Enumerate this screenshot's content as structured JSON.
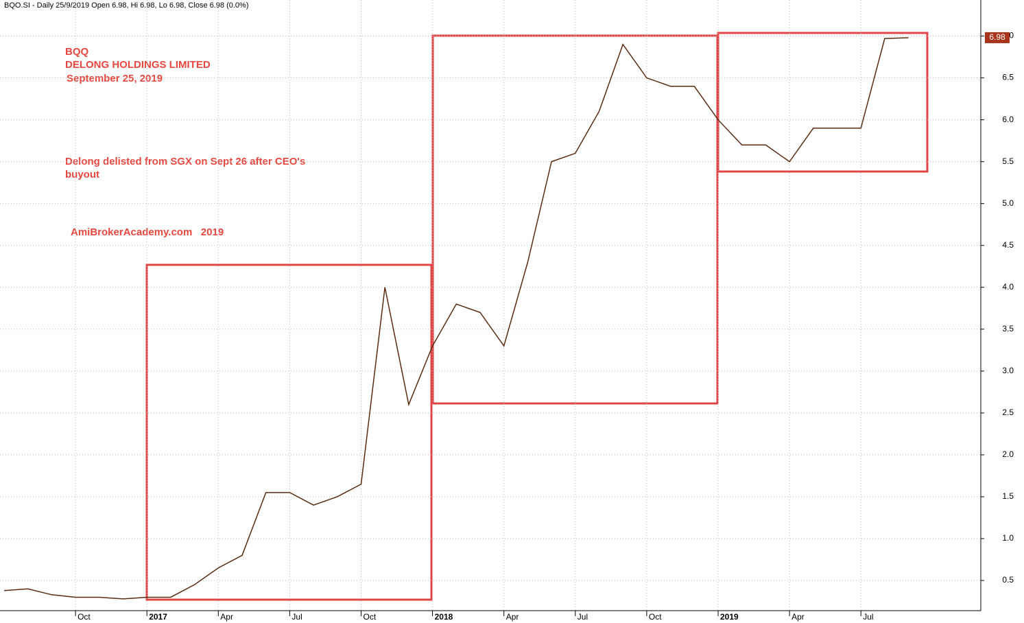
{
  "chart_data": {
    "type": "line",
    "title": "BQO.SI - Daily 25/9/2019 Open 6.98, Hi 6.98, Lo 6.98, Close 6.98 (0.0%)",
    "annotations": [
      "BQQ",
      "DELONG HOLDINGS LIMITED",
      "September 25, 2019",
      "Delong delisted from SGX on Sept 26 after CEO's",
      "buyout",
      "AmiBrokerAcademy.com   2019"
    ],
    "categories": [
      null,
      null,
      null,
      "Oct",
      null,
      null,
      "2017",
      null,
      null,
      "Apr",
      null,
      null,
      "Jul",
      null,
      null,
      "Oct",
      null,
      null,
      "2018",
      null,
      null,
      "Apr",
      null,
      null,
      "Jul",
      null,
      null,
      "Oct",
      null,
      null,
      "2019",
      null,
      null,
      "Apr",
      null,
      null,
      "Jul",
      null,
      null
    ],
    "series": [
      {
        "name": "BQO.SI",
        "color": "#5a2a10",
        "values": [
          0.38,
          0.4,
          0.33,
          0.3,
          0.3,
          0.28,
          0.3,
          0.3,
          0.45,
          0.65,
          0.8,
          1.55,
          1.55,
          1.4,
          1.5,
          1.65,
          4.0,
          2.6,
          3.3,
          3.8,
          3.7,
          3.3,
          4.3,
          5.5,
          5.6,
          6.1,
          6.9,
          6.5,
          6.4,
          6.4,
          6.0,
          5.7,
          5.7,
          5.5,
          5.9,
          5.9,
          5.9,
          6.97,
          6.98
        ]
      }
    ],
    "last_value": 6.98,
    "ylim": [
      0.14,
      7.43
    ],
    "yticks": [
      0.5,
      {
        "value": 1,
        "label": "1.0"
      },
      1.5,
      {
        "value": 2,
        "label": "2.0"
      },
      2.5,
      {
        "value": 3,
        "label": "3.0"
      },
      3.5,
      {
        "value": 4,
        "label": "4.0"
      },
      4.5,
      {
        "value": 5,
        "label": "5.0"
      },
      5.5,
      {
        "value": 6,
        "label": "6.0"
      },
      6.5,
      {
        "value": 7,
        "label": "7.0"
      }
    ],
    "grid": true
  }
}
